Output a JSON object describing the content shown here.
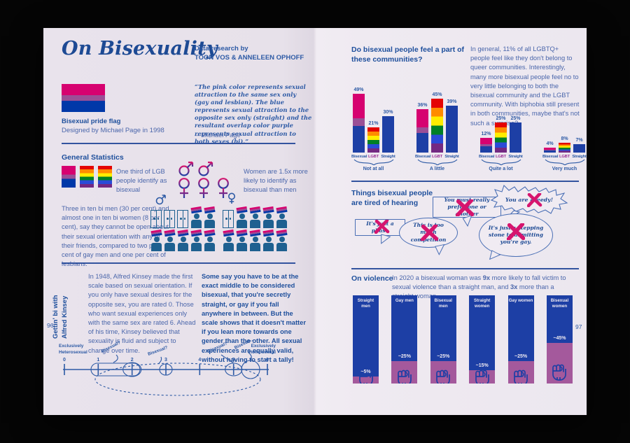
{
  "left_page": {
    "page_number": "96",
    "title": "On Bisexuality",
    "credit": {
      "line1": "Data research by",
      "line2": "TOON VOS & ANNELEEN OPHOFF"
    },
    "flag": {
      "caption_title": "Bisexual pride flag",
      "caption_sub": "Designed by Michael Page in 1998"
    },
    "quote": {
      "text": "“The pink color represents sexual attraction to the same sex only (gay and lesbian). The blue represents sexual attraction to the opposite sex only (straight) and the resultant overlap color purple represents sexual attraction to both sexes (bi).”",
      "attribution": "—Michael Page"
    },
    "general_statistics": {
      "heading": "General Statistics",
      "stat_flags": "One third of LGB people identify as bisexual",
      "stat_gender": "Women are 1.5x more likely to identify as bisexual than men",
      "closet_paragraph": "Three in ten bi men (30 per cent) and almost one in ten bi women (8 per cent), say they cannot be open about their sexual orientation with any of their friends, compared to two per cent of gay men and one per cent of lesbians.",
      "pictogram": {
        "male": {
          "closeted": 3,
          "total": 10
        },
        "female": {
          "closeted": 1,
          "total": 10
        }
      }
    },
    "kinsey": {
      "sidebar_line1": "Gettin' bi with",
      "sidebar_line2": "Alfred Kinsey",
      "paragraph_regular": "In 1948, Alfred Kinsey made the first scale based on sexual orientation. If you only have sexual desires for the opposite sex, you are rated 0. Those who want sexual experiences only with the same sex are rated 6. Ahead of his time, Kinsey believed that sexuality is fluid and subject to change over time.",
      "paragraph_bold": "Some say you have to be at the exact middle to be considered bisexual, that you're secretly straight, or gay if you fall anywhere in between. But the scale shows that it doesn't matter if you lean more towards one gender than the other. All sexual experiences are equally valid, without having to start a tally!",
      "scale": {
        "left_label_line1": "Exclusively",
        "left_label_line2": "Heterosexual",
        "right_label_line1": "Exclusively",
        "right_label_line2": "Homosexual",
        "ticks": [
          "0",
          "1",
          "2",
          "3",
          "4",
          "5",
          "6"
        ],
        "annotation": "Bisexual?"
      }
    }
  },
  "right_page": {
    "page_number": "97",
    "communities": {
      "heading": "Do bisexual people feel a part of these communities?",
      "paragraph": "In general, 11% of all LGBTQ+ people feel like they don't belong to queer communities. Interestingly, many more bisexual people feel no to very little belonging to both the bisexual community and the LGBT community. With biphobia still present in both communities, maybe that's not such a surprise?"
    },
    "tired": {
      "heading": "Things bisexual people are tired of hearing",
      "bubbles": [
        "It's just a phase",
        "This is too much competition",
        "You must really prefer one or another",
        "You are greedy!",
        "It's just a stepping stone to admitting you're gay."
      ]
    },
    "violence": {
      "heading": "On violence",
      "sentence": [
        {
          "text": "In 2020 a bisexual woman was "
        },
        {
          "text": "9x"
        },
        {
          "text": " more likely to fall victim to sexual violence than a straight man, and "
        },
        {
          "text": "3x"
        },
        {
          "text": " more than a straight woman."
        }
      ]
    }
  },
  "chart_data": [
    {
      "type": "bar",
      "title": "Do bisexual people feel a part of these communities?",
      "categories": [
        "Not at all",
        "A little",
        "Quite a lot",
        "Very much"
      ],
      "series": [
        {
          "name": "Bisexual",
          "values": [
            49,
            36,
            12,
            4
          ]
        },
        {
          "name": "LGBT",
          "values": [
            21,
            45,
            25,
            8
          ]
        },
        {
          "name": "Straight",
          "values": [
            30,
            39,
            25,
            7
          ]
        }
      ],
      "unit": "%",
      "grid": false,
      "legend_position": "below-bars"
    },
    {
      "type": "bar",
      "title": "On violence",
      "categories": [
        "Straight men",
        "Gay men",
        "Bisexual men",
        "Straight women",
        "Gay women",
        "Bisexual women"
      ],
      "values": [
        5,
        25,
        25,
        15,
        25,
        45
      ],
      "value_labels": [
        "~5%",
        "~25%",
        "~25%",
        "~15%",
        "~25%",
        "~45%"
      ],
      "unit": "%"
    }
  ],
  "colors": {
    "bi_pink": "#D60270",
    "bi_purple": "#9B4F96",
    "bi_blue": "#0038A8",
    "bar_blue": "#1d3fa5",
    "violence_purple": "#a4599c",
    "ink_blue": "#1e4f9c",
    "x_pink": "#d6156e",
    "rainbow": [
      "#E40303",
      "#FF8C00",
      "#FFED00",
      "#008026",
      "#2a4bd7",
      "#732982"
    ]
  }
}
